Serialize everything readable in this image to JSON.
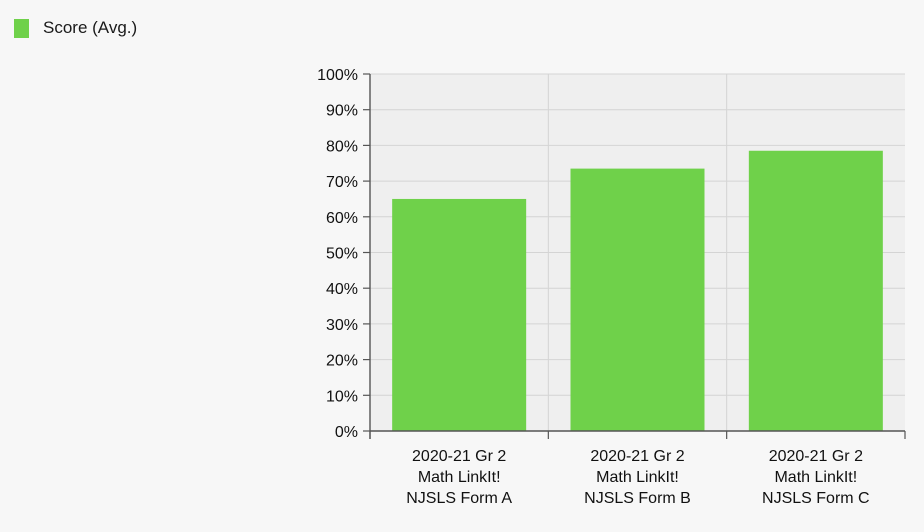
{
  "legend": {
    "label": "Score (Avg.)"
  },
  "colors": {
    "bar": "#6fd14a",
    "plot_background": "#efefef",
    "gridline": "#d4d4d4",
    "axis": "#555555"
  },
  "chart_data": {
    "type": "bar",
    "categories": [
      [
        "2020-21 Gr 2",
        "Math LinkIt!",
        "NJSLS Form A"
      ],
      [
        "2020-21 Gr 2",
        "Math LinkIt!",
        "NJSLS Form B"
      ],
      [
        "2020-21 Gr 2",
        "Math LinkIt!",
        "NJSLS Form C"
      ]
    ],
    "series": [
      {
        "name": "Score (Avg.)",
        "values": [
          65,
          73.5,
          78.5
        ]
      }
    ],
    "ylim": [
      0,
      100
    ],
    "yticks": [
      0,
      10,
      20,
      30,
      40,
      50,
      60,
      70,
      80,
      90,
      100
    ],
    "ytick_labels": [
      "0%",
      "10%",
      "20%",
      "30%",
      "40%",
      "50%",
      "60%",
      "70%",
      "80%",
      "90%",
      "100%"
    ],
    "grid": true,
    "legend_position": "top-left"
  }
}
